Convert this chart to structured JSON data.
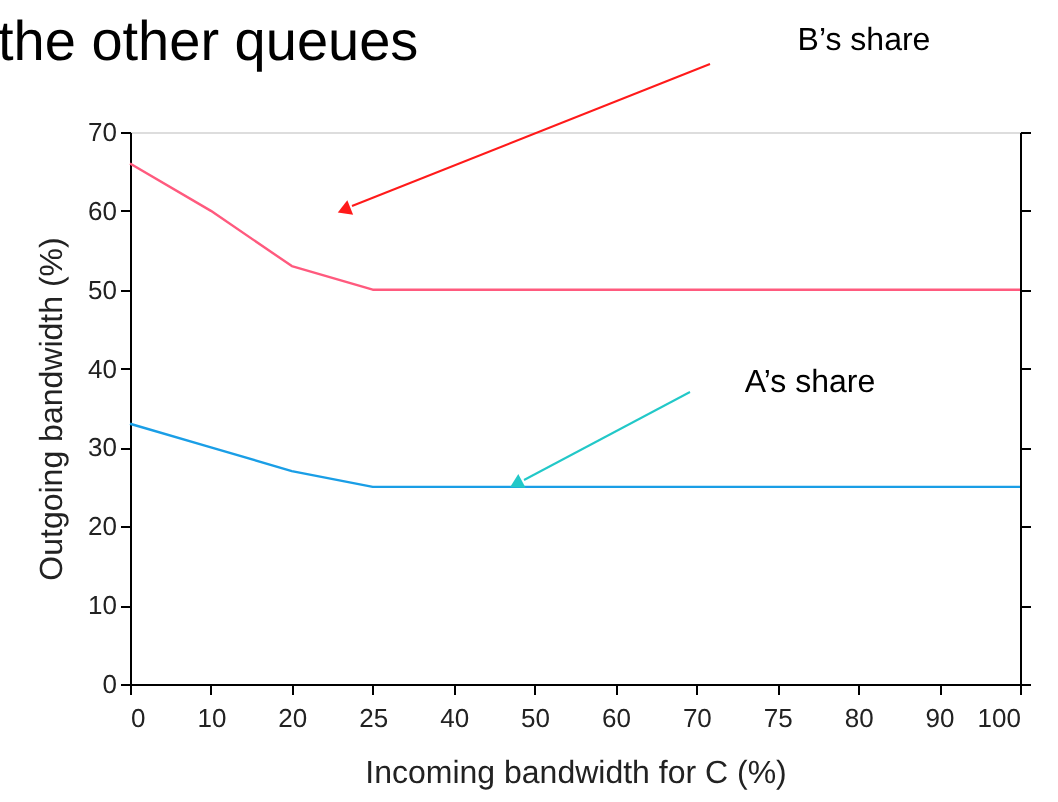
{
  "chart_data": {
    "type": "line",
    "title": "the other queues",
    "xlabel": "Incoming bandwidth for C (%)",
    "ylabel": "Outgoing bandwidth (%)",
    "categories": [
      "0",
      "10",
      "20",
      "25",
      "40",
      "50",
      "60",
      "70",
      "75",
      "80",
      "90",
      "100"
    ],
    "series": [
      {
        "color": "#ff5a7e",
        "values": [
          66,
          60,
          53,
          50,
          50,
          50,
          50,
          50,
          50,
          50,
          50,
          50
        ]
      },
      {
        "color": "#1a9ee6",
        "values": [
          33,
          30,
          27,
          25,
          25,
          25,
          25,
          25,
          25,
          25,
          25,
          25
        ]
      }
    ],
    "ylim": [
      0,
      70
    ],
    "yticks": [
      0,
      10,
      20,
      30,
      40,
      50,
      60,
      70
    ],
    "annotations": [
      "B’s share",
      "A’s share"
    ],
    "grid": false,
    "legend": false
  }
}
